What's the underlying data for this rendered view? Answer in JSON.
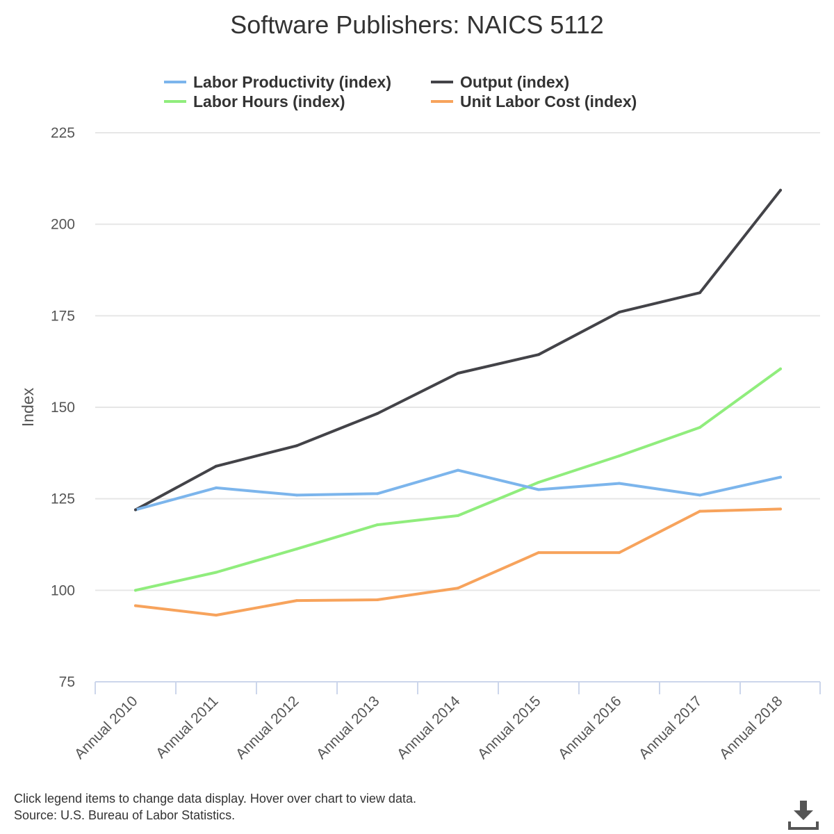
{
  "chart_data": {
    "type": "line",
    "title": "Software Publishers: NAICS 5112",
    "ylabel": "Index",
    "xlabel": "",
    "ylim": [
      75,
      225
    ],
    "yticks": [
      75,
      100,
      125,
      150,
      175,
      200,
      225
    ],
    "grid": true,
    "legend_position": "top",
    "categories": [
      "Annual 2010",
      "Annual 2011",
      "Annual 2012",
      "Annual 2013",
      "Annual 2014",
      "Annual 2015",
      "Annual 2016",
      "Annual 2017",
      "Annual 2018"
    ],
    "series": [
      {
        "name": "Labor Productivity (index)",
        "color": "#7cb5ec",
        "values": [
          122.0,
          128.0,
          126.0,
          126.4,
          132.8,
          127.5,
          129.2,
          126.0,
          130.9
        ]
      },
      {
        "name": "Output (index)",
        "color": "#434348",
        "values": [
          122.0,
          133.9,
          139.5,
          148.3,
          159.3,
          164.4,
          176.0,
          181.3,
          209.3
        ]
      },
      {
        "name": "Labor Hours (index)",
        "color": "#90ed7d",
        "values": [
          100.0,
          104.9,
          111.3,
          117.9,
          120.4,
          129.5,
          136.7,
          144.5,
          160.5
        ]
      },
      {
        "name": "Unit Labor Cost (index)",
        "color": "#f7a35c",
        "values": [
          95.8,
          93.2,
          97.2,
          97.4,
          100.6,
          110.3,
          110.3,
          121.6,
          122.2
        ]
      }
    ]
  },
  "footer": {
    "note": "Click legend items to change data display. Hover over chart to view data.",
    "source": "Source: U.S. Bureau of Labor Statistics."
  },
  "download": {
    "icon": "download-icon"
  }
}
